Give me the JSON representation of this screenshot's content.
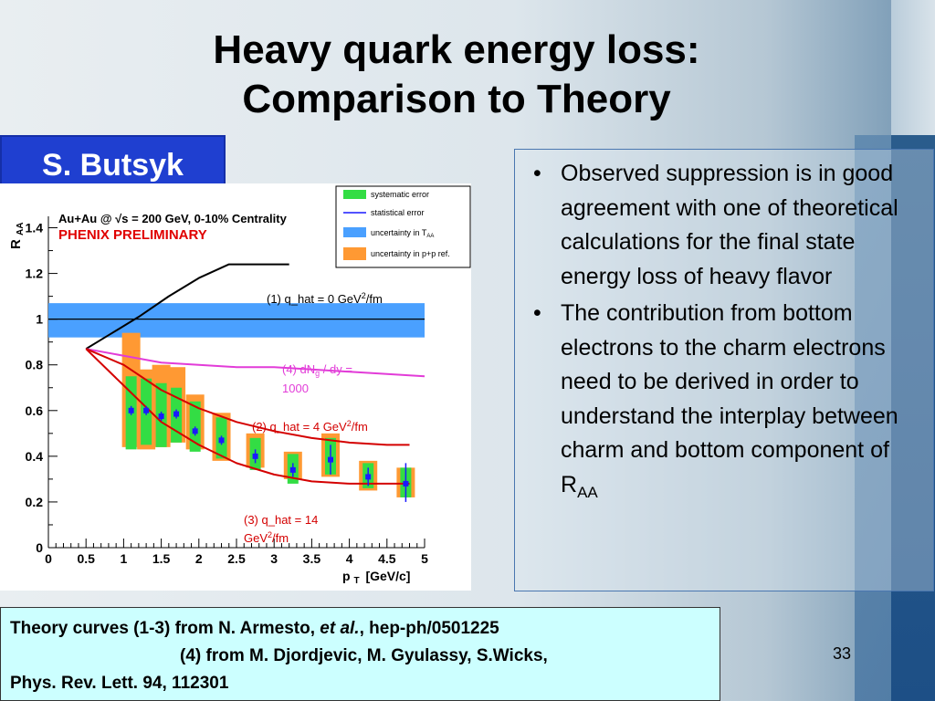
{
  "slide": {
    "title_line1": "Heavy quark energy loss:",
    "title_line2": "Comparison to Theory",
    "author": "S. Butsyk",
    "page_number": "33"
  },
  "bullets": {
    "items": [
      "Observed suppression is in good agreement with one of theoretical calculations for the final state energy loss of heavy flavor",
      "The contribution from bottom electrons to the charm electrons need to be derived in order to understand the interplay between charm and bottom component of R"
    ],
    "item2_subscript": "AA",
    "bullet_glyph": "•"
  },
  "footer": {
    "line1_prefix": "Theory curves (1-3) from N. Armesto, ",
    "line1_italic": "et al.",
    "line1_suffix": ", hep-ph/0501225",
    "line2": "(4) from M. Djordjevic, M. Gyulassy, S.Wicks,",
    "line3": "Phys. Rev. Lett. 94, 112301"
  },
  "chart_data": {
    "type": "scatter",
    "header_line": "Au+Au @ √s = 200 GeV, 0-10% Centrality",
    "preliminary": "PHENIX PRELIMINARY",
    "xlabel": "p",
    "xlabel_sub": "T",
    "xlabel_unit": "[GeV/c]",
    "ylabel": "R",
    "ylabel_sub": "AA",
    "xlim": [
      0,
      5
    ],
    "ylim": [
      0,
      1.45
    ],
    "xticks": [
      "0",
      "0.5",
      "1",
      "1.5",
      "2",
      "2.5",
      "3",
      "3.5",
      "4",
      "4.5",
      "5"
    ],
    "yticks": [
      "0",
      "0.2",
      "0.4",
      "0.6",
      "0.8",
      "1",
      "1.2",
      "1.4"
    ],
    "legend": [
      {
        "label": "systematic error",
        "color": "#33dd44"
      },
      {
        "label": "statistical error",
        "color": "#1a1aff"
      },
      {
        "label": "uncertainty in T",
        "sub": "AA",
        "color": "#4aa0ff"
      },
      {
        "label": "uncertainty in p+p ref.",
        "color": "#ff9933"
      }
    ],
    "taa_band": [
      0.92,
      1.07
    ],
    "series": [
      {
        "name": "data",
        "x": [
          1.1,
          1.3,
          1.5,
          1.7,
          1.95,
          2.3,
          2.75,
          3.25,
          3.75,
          4.25,
          4.75
        ],
        "y": [
          0.6,
          0.6,
          0.575,
          0.585,
          0.51,
          0.47,
          0.4,
          0.34,
          0.385,
          0.31,
          0.28
        ],
        "stat_lo": [
          0.58,
          0.58,
          0.555,
          0.565,
          0.49,
          0.45,
          0.37,
          0.31,
          0.32,
          0.27,
          0.2
        ],
        "stat_hi": [
          0.62,
          0.62,
          0.595,
          0.605,
          0.53,
          0.49,
          0.43,
          0.37,
          0.45,
          0.35,
          0.37
        ],
        "sys_lo": [
          0.43,
          0.45,
          0.44,
          0.46,
          0.42,
          0.39,
          0.34,
          0.28,
          0.32,
          0.26,
          0.22
        ],
        "sys_hi": [
          0.75,
          0.74,
          0.72,
          0.7,
          0.64,
          0.57,
          0.48,
          0.41,
          0.48,
          0.37,
          0.35
        ],
        "ref_lo": [
          0.44,
          0.43,
          0.44,
          0.46,
          0.43,
          0.38,
          0.35,
          0.3,
          0.31,
          0.25,
          0.22
        ],
        "ref_hi": [
          0.94,
          0.78,
          0.8,
          0.79,
          0.67,
          0.59,
          0.5,
          0.42,
          0.5,
          0.38,
          0.35
        ]
      },
      {
        "name": "(1) q_hat = 0 GeV²/fm",
        "color": "#000000",
        "x": [
          0.5,
          0.8,
          1.2,
          1.6,
          2.0,
          2.4,
          2.8,
          3.2
        ],
        "y": [
          0.87,
          0.93,
          1.01,
          1.1,
          1.18,
          1.24,
          1.24,
          1.24
        ]
      },
      {
        "name": "(4) dN_g / dy = 1000",
        "color": "#e23cd8",
        "x": [
          0.5,
          1.0,
          1.5,
          2.0,
          2.5,
          3.0,
          3.5,
          4.0,
          4.5,
          5.0
        ],
        "y": [
          0.87,
          0.84,
          0.81,
          0.8,
          0.79,
          0.79,
          0.78,
          0.77,
          0.76,
          0.75
        ]
      },
      {
        "name": "(2) q_hat = 4 GeV²/fm",
        "color": "#d40000",
        "x": [
          0.5,
          1.0,
          1.5,
          2.0,
          2.5,
          3.0,
          3.5,
          4.0,
          4.5,
          4.8
        ],
        "y": [
          0.87,
          0.8,
          0.69,
          0.61,
          0.55,
          0.51,
          0.48,
          0.46,
          0.45,
          0.45
        ]
      },
      {
        "name": "(3) q_hat = 14 GeV²/fm",
        "color": "#d40000",
        "x": [
          0.5,
          1.0,
          1.5,
          2.0,
          2.5,
          3.0,
          3.5,
          4.0,
          4.5,
          4.8
        ],
        "y": [
          0.87,
          0.71,
          0.55,
          0.45,
          0.37,
          0.32,
          0.29,
          0.28,
          0.28,
          0.28
        ]
      }
    ],
    "curve_labels": {
      "c1": "(1) q_hat = 0 GeV",
      "c4a": "(4) dN",
      "c4sub": "g",
      "c4b": " / dy =",
      "c4c": "1000",
      "c2": "(2) q_hat = 4 GeV",
      "c3a": "(3) q_hat = 14",
      "c3b": "GeV",
      "unit_sup": "2",
      "unit_tail": "/fm"
    }
  }
}
